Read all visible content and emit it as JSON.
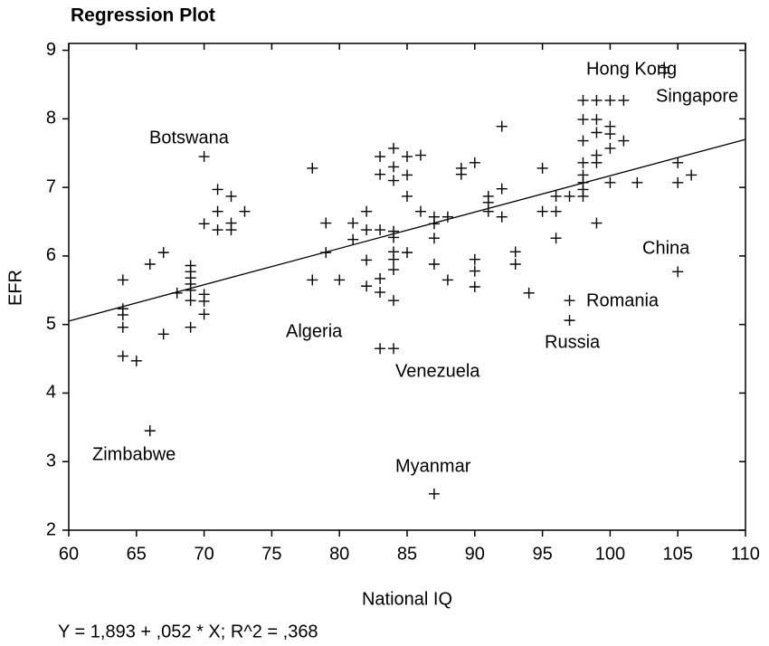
{
  "chart_data": {
    "type": "scatter",
    "title": "Regression Plot",
    "xlabel": "National IQ",
    "ylabel": "EFR",
    "equation": "Y = 1,893 + ,052 * X; R^2 = ,368",
    "xlim": [
      60,
      110
    ],
    "ylim": [
      2,
      9.1
    ],
    "xticks": [
      60,
      65,
      70,
      75,
      80,
      85,
      90,
      95,
      100,
      105,
      110
    ],
    "yticks": [
      2,
      3,
      4,
      5,
      6,
      7,
      8,
      9
    ],
    "color": "#000000",
    "fit": {
      "x": [
        60,
        110
      ],
      "y": [
        5.05,
        7.7
      ]
    },
    "x": [
      64,
      64,
      64,
      64,
      64,
      65,
      66,
      66,
      67,
      67,
      68,
      69,
      69,
      69,
      69,
      69,
      69,
      69,
      70,
      70,
      70,
      70,
      70,
      71,
      71,
      71,
      72,
      72,
      72,
      73,
      78,
      78,
      79,
      79,
      80,
      81,
      81,
      82,
      82,
      82,
      82,
      83,
      83,
      83,
      83,
      83,
      83,
      84,
      84,
      84,
      84,
      84,
      84,
      84,
      84,
      84,
      84,
      85,
      85,
      85,
      85,
      86,
      86,
      87,
      87,
      87,
      87,
      87,
      88,
      88,
      89,
      89,
      90,
      90,
      90,
      90,
      91,
      91,
      91,
      92,
      92,
      92,
      93,
      93,
      94,
      95,
      95,
      96,
      96,
      96,
      97,
      97,
      97,
      98,
      98,
      98,
      98,
      98,
      98,
      98,
      98,
      99,
      99,
      99,
      99,
      99,
      99,
      100,
      100,
      100,
      100,
      100,
      101,
      101,
      102,
      105,
      105,
      105,
      106,
      104,
      104
    ],
    "y": [
      5.65,
      5.23,
      5.14,
      4.96,
      4.54,
      4.47,
      3.45,
      5.88,
      6.05,
      4.86,
      5.46,
      5.86,
      5.77,
      5.68,
      5.59,
      5.5,
      5.35,
      4.96,
      5.44,
      5.34,
      5.15,
      7.45,
      6.47,
      6.97,
      6.65,
      6.38,
      6.87,
      6.48,
      6.38,
      6.65,
      5.65,
      7.28,
      6.48,
      6.05,
      5.65,
      6.48,
      6.24,
      6.65,
      6.38,
      5.94,
      5.56,
      7.45,
      7.19,
      6.38,
      5.67,
      5.47,
      4.65,
      7.57,
      7.3,
      7.1,
      6.36,
      6.27,
      6.06,
      5.95,
      5.8,
      5.35,
      4.65,
      7.45,
      7.18,
      6.87,
      6.05,
      7.47,
      6.65,
      6.57,
      6.47,
      6.26,
      5.88,
      2.53,
      6.57,
      5.65,
      7.28,
      7.19,
      7.36,
      5.95,
      5.78,
      5.55,
      6.87,
      6.78,
      6.65,
      7.89,
      6.98,
      6.57,
      6.06,
      5.88,
      5.46,
      7.28,
      6.65,
      6.87,
      6.65,
      6.26,
      6.87,
      5.35,
      5.06,
      8.27,
      7.99,
      7.68,
      7.36,
      7.18,
      7.07,
      6.97,
      6.87,
      8.27,
      7.99,
      7.8,
      7.47,
      7.36,
      6.48,
      8.27,
      7.89,
      7.78,
      7.57,
      7.07,
      8.27,
      7.68,
      7.07,
      7.36,
      7.07,
      5.77,
      7.18,
      8.75,
      8.67
    ],
    "annotations": [
      "Hong Kong",
      "Singapore",
      "Botswana",
      "China",
      "Romania",
      "Russia",
      "Algeria",
      "Venezuela",
      "Zimbabwe",
      "Myanmar"
    ]
  }
}
